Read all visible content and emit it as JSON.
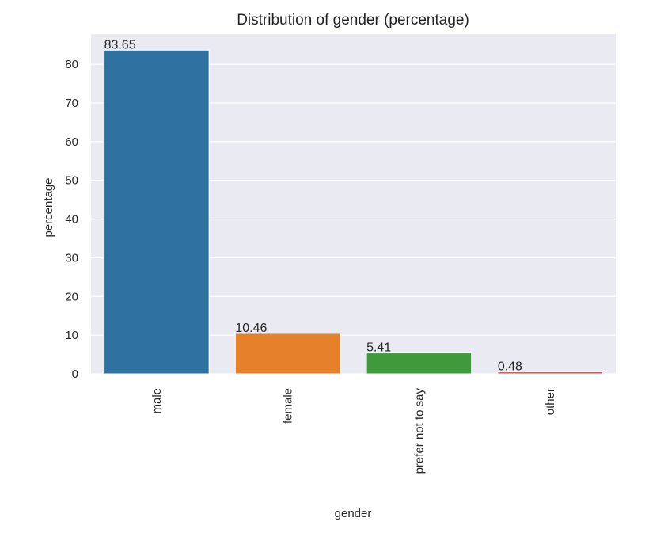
{
  "chart_data": {
    "type": "bar",
    "title": "Distribution of gender (percentage)",
    "xlabel": "gender",
    "ylabel": "percentage",
    "categories": [
      "male",
      "female",
      "prefer not to say",
      "other"
    ],
    "values": [
      83.65,
      10.46,
      5.41,
      0.48
    ],
    "value_labels": [
      "83.65",
      "10.46",
      "5.41",
      "0.48"
    ],
    "colors": [
      "#2f71a0",
      "#e5802b",
      "#3e9a3b",
      "#d23b3b"
    ],
    "ylim": [
      0,
      87.8
    ],
    "yticks": [
      0,
      10,
      20,
      30,
      40,
      50,
      60,
      70,
      80
    ],
    "grid": true,
    "legend": "none",
    "background_color": "#eaeaf2",
    "grid_color": "#ffffff"
  }
}
